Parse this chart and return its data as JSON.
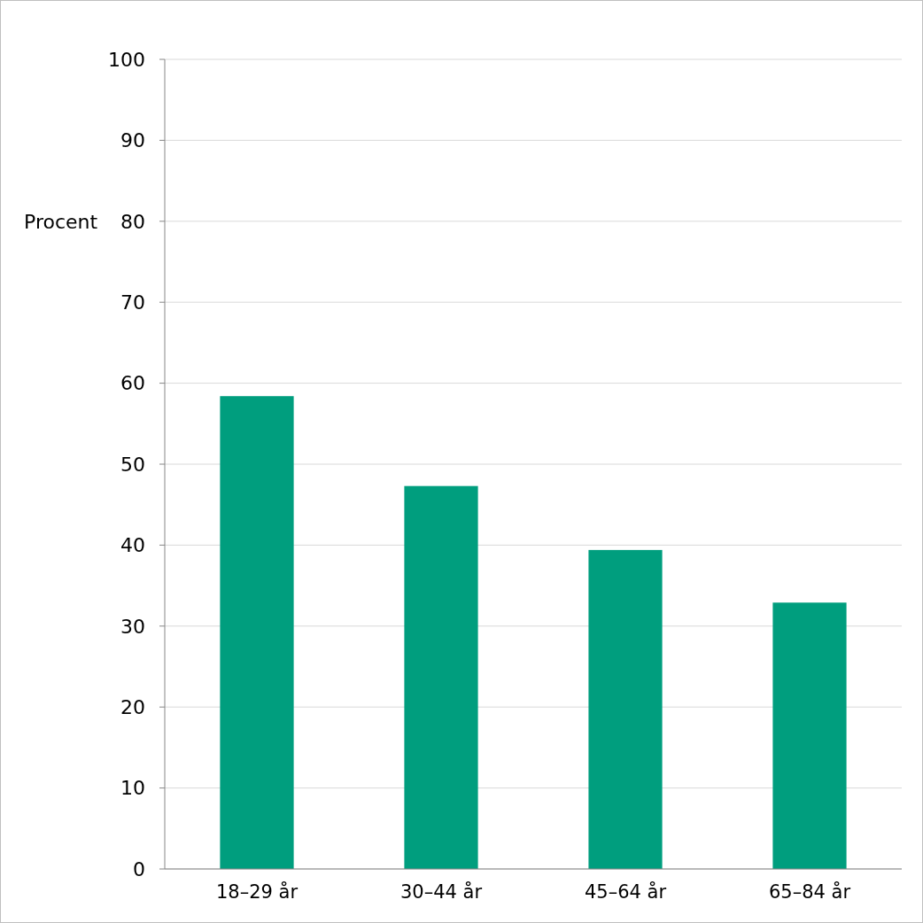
{
  "chart_data": {
    "type": "bar",
    "ylabel": "Procent",
    "categories": [
      "18–29 år",
      "30–44 år",
      "45–64 år",
      "65–84 år"
    ],
    "values": [
      58.4,
      47.3,
      39.4,
      32.9
    ],
    "color": "#009e7e",
    "ylim": [
      0,
      100
    ],
    "yticks": [
      0,
      10,
      20,
      30,
      40,
      50,
      60,
      70,
      80,
      90,
      100
    ],
    "grid": "y"
  }
}
